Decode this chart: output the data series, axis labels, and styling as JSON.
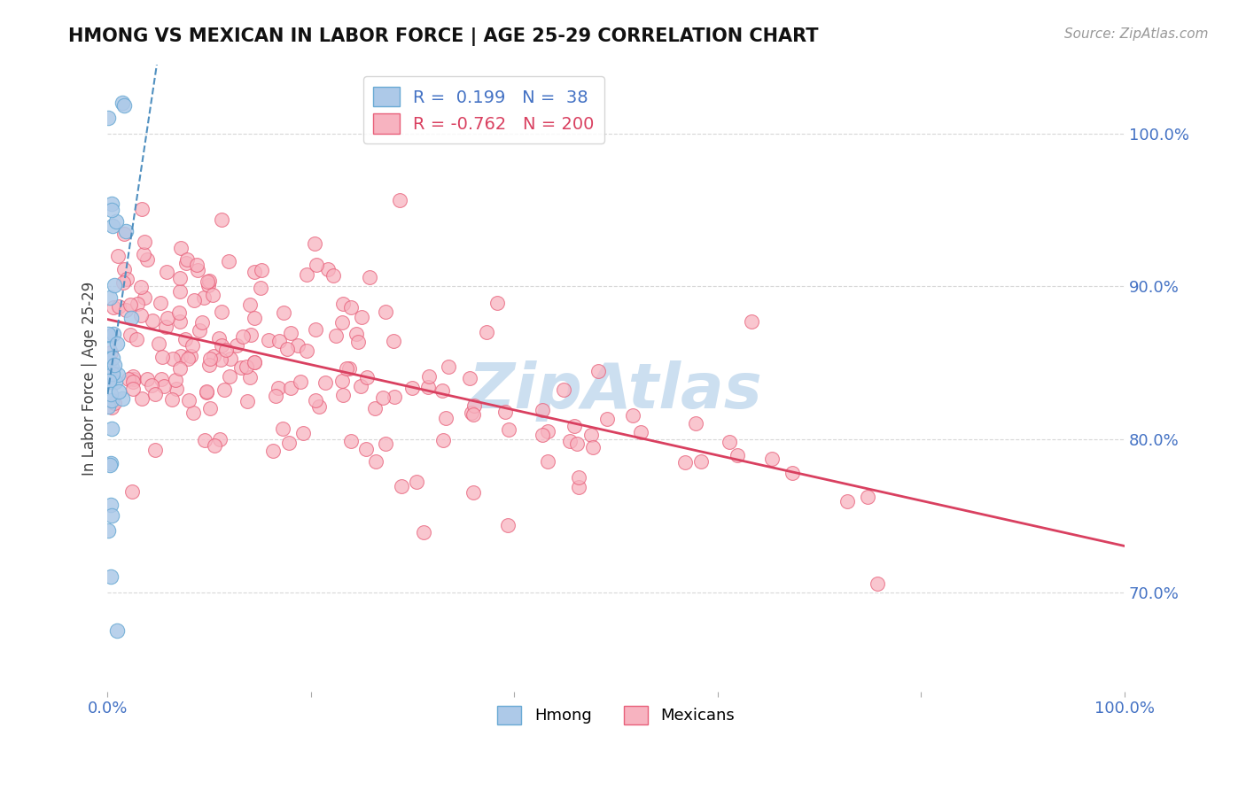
{
  "title": "HMONG VS MEXICAN IN LABOR FORCE | AGE 25-29 CORRELATION CHART",
  "source": "Source: ZipAtlas.com",
  "ylabel": "In Labor Force | Age 25-29",
  "xlim": [
    0.0,
    1.0
  ],
  "ylim": [
    0.635,
    1.045
  ],
  "right_yticks": [
    0.7,
    0.8,
    0.9,
    1.0
  ],
  "right_ytick_labels": [
    "70.0%",
    "80.0%",
    "90.0%",
    "100.0%"
  ],
  "hmong_R": 0.199,
  "hmong_N": 38,
  "mexican_R": -0.762,
  "mexican_N": 200,
  "hmong_color": "#adc9e8",
  "hmong_edge_color": "#6aaad4",
  "mexican_color": "#f7b3c0",
  "mexican_edge_color": "#e8607a",
  "mexican_line_color": "#d94060",
  "hmong_line_color": "#5090c0",
  "watermark": "ZipAtlas",
  "watermark_color": "#ccdff0",
  "title_color": "#111111",
  "source_color": "#999999",
  "axis_label_color": "#4472c4",
  "grid_color": "#d8d8d8"
}
